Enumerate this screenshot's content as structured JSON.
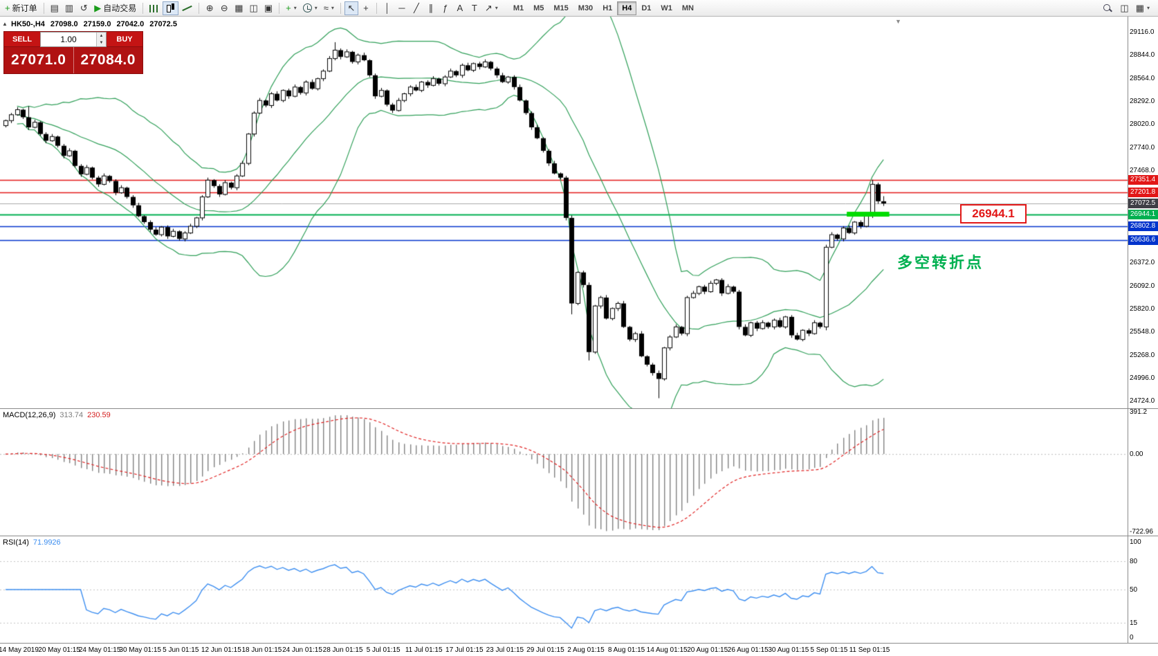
{
  "colors": {
    "accent_red": "#e21717",
    "accent_blue": "#0033cc",
    "accent_green": "#00b050",
    "lime": "#00dc00",
    "band_green": "#2e9e57",
    "rsi_blue": "#3b8df0",
    "macd_signal_red": "#e02020",
    "hist_gray": "#808080",
    "tag_dark": "#3f3f46",
    "trade_red": "#b01212"
  },
  "toolbar": {
    "dropdown_glyph": "▾",
    "items": [
      {
        "kind": "labeled",
        "name": "new-order-button",
        "icon": "new-order-icon",
        "glyph": "+",
        "glyph_color": "#1a9c1a",
        "label": "新订单"
      },
      {
        "kind": "sep"
      },
      {
        "kind": "icon",
        "name": "market-watch-button",
        "icon": "market-watch-icon",
        "glyph": "▤"
      },
      {
        "kind": "icon",
        "name": "navigator-button",
        "icon": "navigator-icon",
        "glyph": "▥"
      },
      {
        "kind": "icon",
        "name": "refresh-button",
        "icon": "refresh-icon",
        "glyph": "↺"
      },
      {
        "kind": "labeled",
        "name": "auto-trading-button",
        "icon": "play-icon",
        "glyph": "▶",
        "glyph_color": "#1a9c1a",
        "label": "自动交易"
      },
      {
        "kind": "sep"
      },
      {
        "kind": "icon",
        "name": "bar-chart-button",
        "icon": "bar-chart-icon",
        "cls": "ic-bars"
      },
      {
        "kind": "icon",
        "name": "candlestick-chart-button",
        "icon": "candlestick-icon",
        "cls": "ic-candles",
        "active": true
      },
      {
        "kind": "icon",
        "name": "line-chart-button",
        "icon": "line-chart-icon",
        "cls": "ic-line"
      },
      {
        "kind": "sep"
      },
      {
        "kind": "icon",
        "name": "zoom-in-button",
        "icon": "zoom-in-icon",
        "glyph": "⊕"
      },
      {
        "kind": "icon",
        "name": "zoom-out-button",
        "icon": "zoom-out-icon",
        "glyph": "⊖"
      },
      {
        "kind": "icon",
        "name": "tile-windows-button",
        "icon": "tile-windows-icon",
        "glyph": "▦"
      },
      {
        "kind": "icon",
        "name": "cascade-windows-button",
        "icon": "cascade-windows-icon",
        "glyph": "◫"
      },
      {
        "kind": "icon",
        "name": "arrange-windows-button",
        "icon": "arrange-windows-icon",
        "glyph": "▣"
      },
      {
        "kind": "sep"
      },
      {
        "kind": "icon",
        "name": "indicators-button",
        "icon": "add-indicator-icon",
        "glyph": "+",
        "glyph_color": "#1a9c1a",
        "dropdown": true
      },
      {
        "kind": "icon",
        "name": "periods-button",
        "icon": "clock-icon",
        "cls": "ic-clock",
        "dropdown": true
      },
      {
        "kind": "icon",
        "name": "templates-button",
        "icon": "template-icon",
        "glyph": "≈",
        "dropdown": true
      },
      {
        "kind": "sep"
      },
      {
        "kind": "icon",
        "name": "cursor-button",
        "icon": "cursor-icon",
        "glyph": "↖",
        "active": true
      },
      {
        "kind": "icon",
        "name": "crosshair-button",
        "icon": "crosshair-icon",
        "glyph": "+"
      },
      {
        "kind": "sep"
      },
      {
        "kind": "icon",
        "name": "vertical-line-button",
        "icon": "vertical-line-icon",
        "glyph": "│"
      },
      {
        "kind": "icon",
        "name": "horizontal-line-button",
        "icon": "horizontal-line-icon",
        "glyph": "─"
      },
      {
        "kind": "icon",
        "name": "trendline-button",
        "icon": "trendline-icon",
        "glyph": "╱"
      },
      {
        "kind": "icon",
        "name": "channel-button",
        "icon": "channel-icon",
        "glyph": "∥"
      },
      {
        "kind": "icon",
        "name": "fibonacci-button",
        "icon": "fibonacci-icon",
        "glyph": "ƒ"
      },
      {
        "kind": "icon",
        "name": "text-button",
        "icon": "text-icon",
        "glyph": "A"
      },
      {
        "kind": "icon",
        "name": "label-button",
        "icon": "label-icon",
        "glyph": "T"
      },
      {
        "kind": "icon",
        "name": "arrows-button",
        "icon": "arrow-icon",
        "glyph": "↗",
        "dropdown": true
      }
    ],
    "timeframes": [
      "M1",
      "M5",
      "M15",
      "M30",
      "H1",
      "H4",
      "D1",
      "W1",
      "MN"
    ],
    "active_timeframe": "H4",
    "right_items": [
      {
        "kind": "icon",
        "name": "search-button",
        "icon": "magnifier-icon",
        "cls": "ic-mag"
      },
      {
        "kind": "icon",
        "name": "new-chart-button",
        "icon": "new-chart-icon",
        "glyph": "◫"
      },
      {
        "kind": "icon",
        "name": "chart-list-button",
        "icon": "chart-list-icon",
        "glyph": "▦",
        "dropdown": true
      }
    ]
  },
  "chart": {
    "panel_toggle": "▲",
    "shift_marker": "▼",
    "symbol_period": "HK50-,H4",
    "open": "27098.0",
    "high": "27159.0",
    "low": "27042.0",
    "close": "27072.5",
    "annotation": "多空转折点",
    "callout": "26944.1",
    "axis_labels": [
      "29116.0",
      "28844.0",
      "28564.0",
      "28292.0",
      "28020.0",
      "27740.0",
      "27468.0",
      "26372.0",
      "26092.0",
      "25820.0",
      "25548.0",
      "25268.0",
      "24996.0",
      "24724.0"
    ],
    "price_tags": [
      {
        "label": "27351.4",
        "price": 27351.4,
        "bg": "#e21717"
      },
      {
        "label": "27201.8",
        "price": 27201.8,
        "bg": "#e21717"
      },
      {
        "label": "27072.5",
        "price": 27072.5,
        "bg": "#3f3f46"
      },
      {
        "label": "26944.1",
        "price": 26944.1,
        "bg": "#00b050"
      },
      {
        "label": "26802.8",
        "price": 26802.8,
        "bg": "#0033cc"
      },
      {
        "label": "26636.6",
        "price": 26636.6,
        "bg": "#0033cc"
      }
    ],
    "hlines": [
      {
        "price": 27351.4,
        "color": "#e21717",
        "width": 1.4
      },
      {
        "price": 27201.8,
        "color": "#e21717",
        "width": 1.4
      },
      {
        "price": 27072.5,
        "color": "#a8a8a8",
        "width": 1
      },
      {
        "price": 26944.1,
        "color": "#00b050",
        "width": 2
      },
      {
        "price": 26802.8,
        "color": "#0033cc",
        "width": 1.6
      },
      {
        "price": 26636.6,
        "color": "#0033cc",
        "width": 1.6
      }
    ]
  },
  "trade_panel": {
    "sell_label": "SELL",
    "buy_label": "BUY",
    "volume": "1.00",
    "spin_up": "▲",
    "spin_down": "▼",
    "sell_price": "27071.0",
    "buy_price": "27084.0"
  },
  "macd": {
    "label": "MACD(12,26,9)",
    "value_main": "313.74",
    "value_signal": "230.59",
    "axis": [
      "391.2",
      "0.00",
      "-722.96"
    ]
  },
  "rsi": {
    "label": "RSI(14)",
    "value": "71.9926",
    "axis": [
      "100",
      "80",
      "50",
      "15",
      "0"
    ],
    "levels": [
      80,
      50,
      15
    ]
  },
  "time_axis": [
    "14 May 2019",
    "20 May 01:15",
    "24 May 01:15",
    "30 May 01:15",
    "5 Jun 01:15",
    "12 Jun 01:15",
    "18 Jun 01:15",
    "24 Jun 01:15",
    "28 Jun 01:15",
    "5 Jul 01:15",
    "11 Jul 01:15",
    "17 Jul 01:15",
    "23 Jul 01:15",
    "29 Jul 01:15",
    "2 Aug 01:15",
    "8 Aug 01:15",
    "14 Aug 01:15",
    "20 Aug 01:15",
    "26 Aug 01:15",
    "30 Aug 01:15",
    "5 Sep 01:15",
    "11 Sep 01:15"
  ],
  "chart_data": {
    "type": "candlestick",
    "symbol": "HK50-",
    "timeframe": "H4",
    "ylim": [
      24630,
      29300
    ],
    "macd_ylim": [
      -760,
      420
    ],
    "first_open": 28000,
    "closes": [
      28060,
      28130,
      28190,
      28100,
      27980,
      28040,
      27900,
      27820,
      27870,
      27760,
      27640,
      27700,
      27520,
      27420,
      27500,
      27380,
      27300,
      27400,
      27340,
      27200,
      27260,
      27150,
      27050,
      26920,
      26850,
      26760,
      26700,
      26790,
      26680,
      26740,
      26650,
      26720,
      26800,
      26900,
      27150,
      27350,
      27280,
      27180,
      27320,
      27260,
      27400,
      27550,
      27900,
      28150,
      28300,
      28240,
      28380,
      28300,
      28420,
      28350,
      28460,
      28390,
      28520,
      28440,
      28560,
      28650,
      28800,
      28900,
      28820,
      28880,
      28760,
      28840,
      28780,
      28600,
      28350,
      28420,
      28250,
      28180,
      28300,
      28380,
      28460,
      28420,
      28520,
      28480,
      28560,
      28500,
      28580,
      28650,
      28600,
      28720,
      28660,
      28740,
      28700,
      28760,
      28680,
      28600,
      28520,
      28580,
      28460,
      28300,
      28150,
      27980,
      27850,
      27700,
      27550,
      27430,
      27380,
      26900,
      25880,
      26250,
      26100,
      25300,
      25850,
      25950,
      25700,
      25820,
      25880,
      25600,
      25450,
      25520,
      25250,
      25150,
      25050,
      24980,
      25350,
      25480,
      25600,
      25520,
      25950,
      26000,
      26080,
      26020,
      26120,
      26160,
      26000,
      26080,
      26020,
      25600,
      25500,
      25650,
      25580,
      25650,
      25600,
      25680,
      25600,
      25720,
      25500,
      25450,
      25560,
      25520,
      25650,
      25600,
      26550,
      26700,
      26650,
      26780,
      26720,
      26850,
      26800,
      26920,
      27300,
      27098,
      27072.5
    ],
    "wick_overrides": {
      "4": [
        28230,
        null
      ],
      "57": [
        28995,
        null
      ],
      "98": [
        null,
        25750
      ],
      "101": [
        null,
        25200
      ],
      "113": [
        null,
        24750
      ],
      "142": [
        26580,
        25560
      ],
      "150": [
        27355,
        null
      ],
      "152": [
        27159,
        27042
      ]
    },
    "bollinger": {
      "period": 20,
      "deviation": 2
    },
    "macd": {
      "fast": 12,
      "slow": 26,
      "signal": 9
    },
    "rsi_period": 14,
    "highlight_segment": {
      "price": 26944.1,
      "from_index": 146,
      "to_index": 153
    }
  }
}
